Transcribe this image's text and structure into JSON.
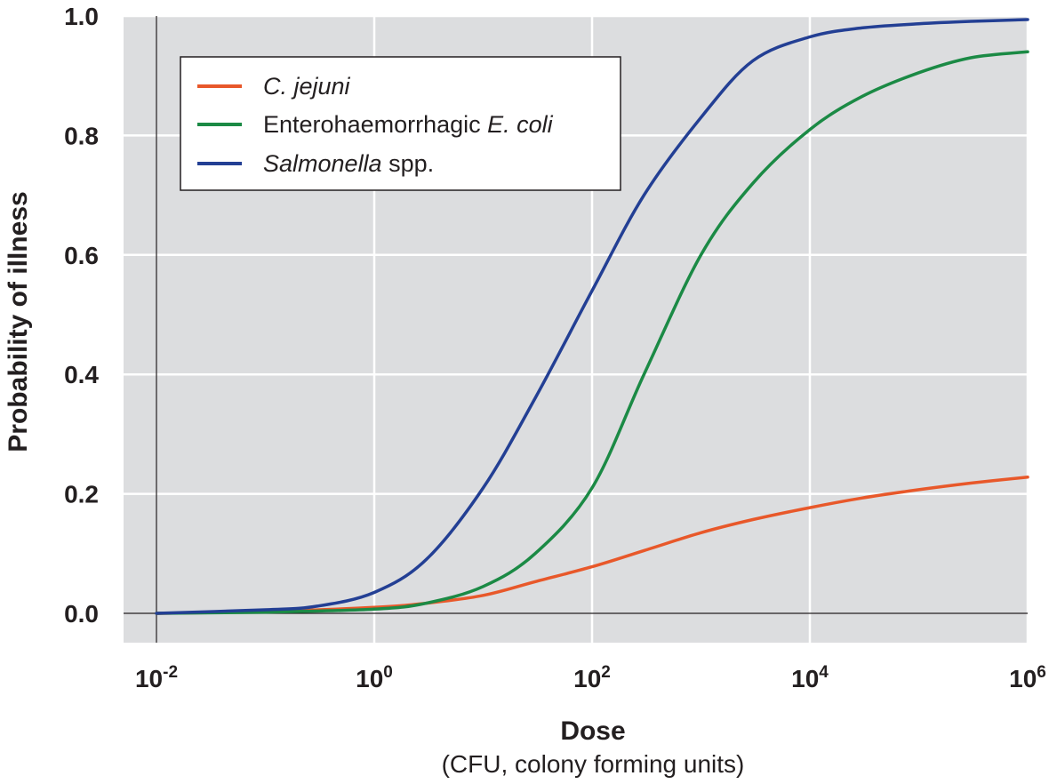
{
  "chart_data": {
    "type": "line",
    "xscale": "log",
    "xlim": [
      0.01,
      1000000
    ],
    "ylim": [
      -0.05,
      1.0
    ],
    "grid": true,
    "legend_position": "top-left",
    "xlabel": "Dose",
    "xlabel_sub": "(CFU, colony forming units)",
    "ylabel": "Probability of illness",
    "y_ticks": [
      "0.0",
      "0.2",
      "0.4",
      "0.6",
      "0.8",
      "1.0"
    ],
    "y_tick_values": [
      0,
      0.2,
      0.4,
      0.6,
      0.8,
      1.0
    ],
    "x_ticks": [
      {
        "value": 0.01,
        "base": "10",
        "exp": "-2"
      },
      {
        "value": 1,
        "base": "10",
        "exp": "0"
      },
      {
        "value": 100,
        "base": "10",
        "exp": "2"
      },
      {
        "value": 10000,
        "base": "10",
        "exp": "4"
      },
      {
        "value": 1000000,
        "base": "10",
        "exp": "6"
      }
    ],
    "series": [
      {
        "name": "C. jejuni",
        "legend_parts": [
          {
            "text": "C. jejuni",
            "italic": true
          }
        ],
        "color": "#e8582a",
        "x": [
          0.01,
          0.1,
          1,
          3,
          10,
          30,
          100,
          300,
          1000,
          3000,
          10000,
          30000,
          100000,
          300000,
          1000000
        ],
        "y": [
          0.0,
          0.003,
          0.01,
          0.017,
          0.03,
          0.053,
          0.078,
          0.105,
          0.135,
          0.157,
          0.177,
          0.193,
          0.207,
          0.218,
          0.228
        ]
      },
      {
        "name": "Enterohaemorrhagic E. coli",
        "legend_parts": [
          {
            "text": "Enterohaemorrhagic ",
            "italic": false
          },
          {
            "text": "E. coli",
            "italic": true
          }
        ],
        "color": "#1b8a45",
        "x": [
          0.01,
          0.1,
          1,
          3,
          10,
          30,
          100,
          300,
          1000,
          3000,
          10000,
          30000,
          100000,
          300000,
          1000000
        ],
        "y": [
          0.0,
          0.002,
          0.007,
          0.017,
          0.045,
          0.1,
          0.21,
          0.4,
          0.6,
          0.72,
          0.81,
          0.865,
          0.905,
          0.93,
          0.94
        ]
      },
      {
        "name": "Salmonella spp.",
        "legend_parts": [
          {
            "text": "Salmonella",
            "italic": true
          },
          {
            "text": " spp.",
            "italic": false
          }
        ],
        "color": "#233f94",
        "x": [
          0.01,
          0.1,
          0.3,
          1,
          3,
          10,
          30,
          100,
          300,
          1000,
          3000,
          10000,
          30000,
          100000,
          300000,
          1000000
        ],
        "y": [
          0.0,
          0.006,
          0.012,
          0.035,
          0.09,
          0.21,
          0.36,
          0.54,
          0.7,
          0.83,
          0.925,
          0.965,
          0.98,
          0.987,
          0.991,
          0.994
        ]
      }
    ]
  }
}
